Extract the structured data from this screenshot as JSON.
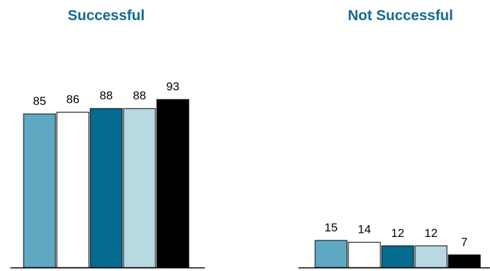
{
  "chart_data": [
    {
      "type": "bar",
      "title": "Successful",
      "values": [
        85,
        86,
        88,
        88,
        93
      ],
      "colors": [
        "#5ea9c1",
        "#ffffff",
        "#036c8f",
        "#b8d8e2",
        "#000000"
      ],
      "ylim": [
        0,
        100
      ]
    },
    {
      "type": "bar",
      "title": "Not Successful",
      "values": [
        15,
        14,
        12,
        12,
        7
      ],
      "colors": [
        "#5ea9c1",
        "#ffffff",
        "#036c8f",
        "#b8d8e2",
        "#000000"
      ],
      "ylim": [
        0,
        100
      ]
    }
  ],
  "title_color": "#136b8b"
}
